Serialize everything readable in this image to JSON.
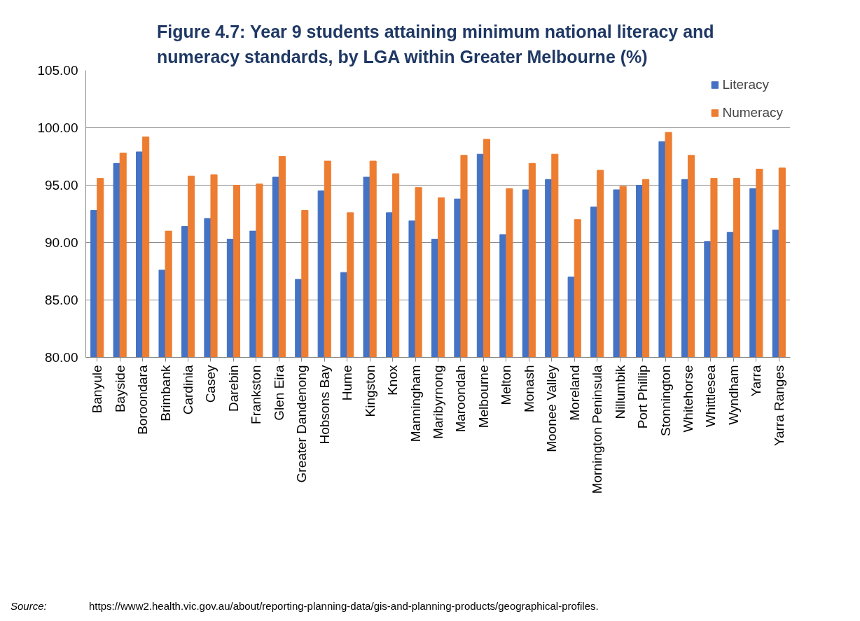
{
  "chart_data": {
    "type": "bar",
    "title": "Figure 4.7:  Year 9 students attaining minimum national literacy and numeracy standards, by LGA within Greater Melbourne (%)",
    "categories": [
      "Banyule",
      "Bayside",
      "Boroondara",
      "Brimbank",
      "Cardinia",
      "Casey",
      "Darebin",
      "Frankston",
      "Glen Eira",
      "Greater Dandenong",
      "Hobsons Bay",
      "Hume",
      "Kingston",
      "Knox",
      "Manningham",
      "Maribyrnong",
      "Maroondah",
      "Melbourne",
      "Melton",
      "Monash",
      "Moonee Valley",
      "Moreland",
      "Mornington Peninsula",
      "Nillumbik",
      "Port Phillip",
      "Stonnington",
      "Whitehorse",
      "Whittlesea",
      "Wyndham",
      "Yarra",
      "Yarra Ranges"
    ],
    "series": [
      {
        "name": "Literacy",
        "color": "#4472c4",
        "values": [
          92.8,
          96.9,
          97.9,
          87.6,
          91.4,
          92.1,
          90.3,
          91.0,
          95.7,
          86.8,
          94.5,
          87.4,
          95.7,
          92.6,
          91.9,
          90.3,
          93.8,
          97.7,
          90.7,
          94.6,
          95.5,
          87.0,
          93.1,
          94.6,
          95.0,
          98.8,
          95.5,
          90.1,
          90.9,
          94.7,
          91.1
        ]
      },
      {
        "name": "Numeracy",
        "color": "#ed7d31",
        "values": [
          95.6,
          97.8,
          99.2,
          91.0,
          95.8,
          95.9,
          95.0,
          95.1,
          97.5,
          92.8,
          97.1,
          92.6,
          97.1,
          96.0,
          94.8,
          93.9,
          97.6,
          99.0,
          94.7,
          96.9,
          97.7,
          92.0,
          96.3,
          94.9,
          95.5,
          99.6,
          97.6,
          95.6,
          95.6,
          96.4,
          96.5
        ]
      }
    ],
    "ylim": [
      80,
      105
    ],
    "yticks": [
      {
        "value": 80,
        "label": "80.00"
      },
      {
        "value": 85,
        "label": "85.00"
      },
      {
        "value": 90,
        "label": "90.00"
      },
      {
        "value": 95,
        "label": "95.00"
      },
      {
        "value": 100,
        "label": "100.00"
      },
      {
        "value": 105,
        "label": "105.00"
      }
    ],
    "grid": "y",
    "legend": "top right",
    "annotations": [
      "Source:",
      "https://www2.health.vic.gov.au/about/reporting-planning-data/gis-and-planning-products/geographical-profiles."
    ]
  }
}
